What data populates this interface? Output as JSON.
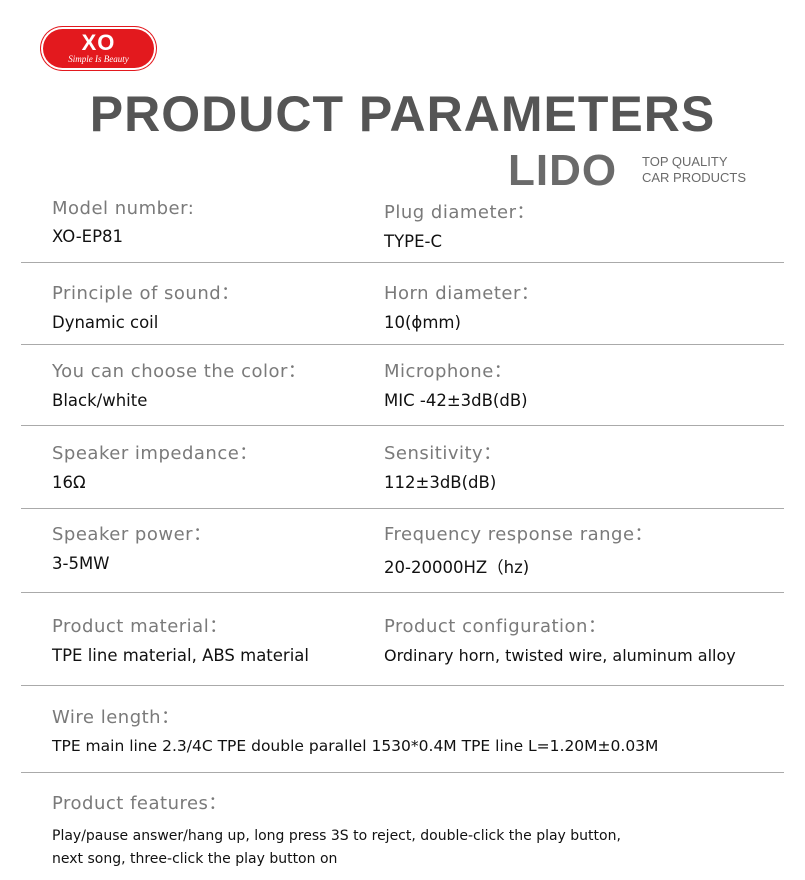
{
  "brand": {
    "logo_text": "XO",
    "slogan": "Simple Is Beauty",
    "color": "#e3191e"
  },
  "title": "PRODUCT PARAMETERS",
  "params": [
    {
      "label": "Model number:",
      "value": "XO-EP81"
    },
    {
      "label": "Plug diameter：",
      "value": "TYPE-C"
    },
    {
      "label": "Principle of sound：",
      "value": "Dynamic coil"
    },
    {
      "label": "Horn diameter：",
      "value": "10(ϕmm)"
    },
    {
      "label": "You can choose the color：",
      "value": "Black/white"
    },
    {
      "label": "Microphone：",
      "value": "MIC -42±3dB(dB)"
    },
    {
      "label": "Speaker impedance：",
      "value": "16Ω"
    },
    {
      "label": "Sensitivity：",
      "value": "112±3dB(dB)"
    },
    {
      "label": "Speaker power：",
      "value": "3-5MW"
    },
    {
      "label": "Frequency response range：",
      "value": "20-20000HZ（hz)"
    },
    {
      "label": "Product material：",
      "value": "TPE line material, ABS material"
    },
    {
      "label": "Product configuration：",
      "value": "Ordinary horn, twisted wire, aluminum alloy"
    },
    {
      "label": "Wire length：",
      "value": "TPE main line 2.3/4C TPE double parallel 1530*0.4M TPE line L=1.20M±0.03M"
    },
    {
      "label": "Product features：",
      "value": "Play/pause answer/hang up, long press 3S to reject, double-click the play button, next song, three-click the play button on"
    }
  ],
  "watermark": {
    "big": "LIDO",
    "line1": "TOP QUALITY",
    "line2": "CAR PRODUCTS"
  }
}
